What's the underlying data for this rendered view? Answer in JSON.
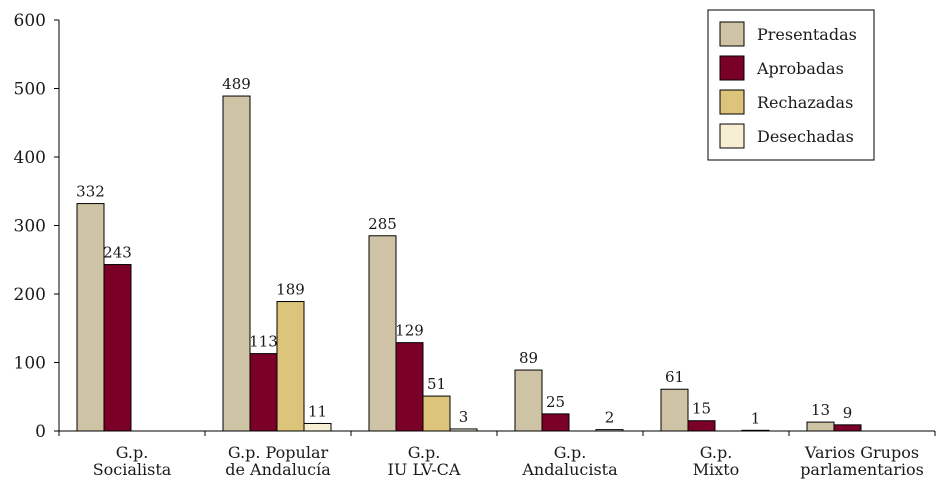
{
  "chart_data": {
    "type": "bar",
    "categories": [
      [
        "G.p.",
        "Socialista"
      ],
      [
        "G.p. Popular",
        "de Andalucía"
      ],
      [
        "G.p.",
        "IU LV-CA"
      ],
      [
        "G.p.",
        "Andalucista"
      ],
      [
        "G.p.",
        "Mixto"
      ],
      [
        "Varios Grupos",
        "parlamentarios"
      ]
    ],
    "series": [
      {
        "name": "Presentadas",
        "color": "#cec3a4",
        "values": [
          332,
          489,
          285,
          89,
          61,
          13
        ]
      },
      {
        "name": "Aprobadas",
        "color": "#7b0027",
        "values": [
          243,
          113,
          129,
          25,
          15,
          9
        ]
      },
      {
        "name": "Rechazadas",
        "color": "#dcc57a",
        "values": [
          null,
          189,
          51,
          null,
          null,
          null
        ]
      },
      {
        "name": "Desechadas",
        "color": "#f6efd4",
        "values": [
          null,
          11,
          3,
          2,
          1,
          null
        ]
      }
    ],
    "ylim": [
      0,
      600
    ],
    "yticks": [
      0,
      100,
      200,
      300,
      400,
      500,
      600
    ],
    "grid": false,
    "legend": "top-right"
  }
}
